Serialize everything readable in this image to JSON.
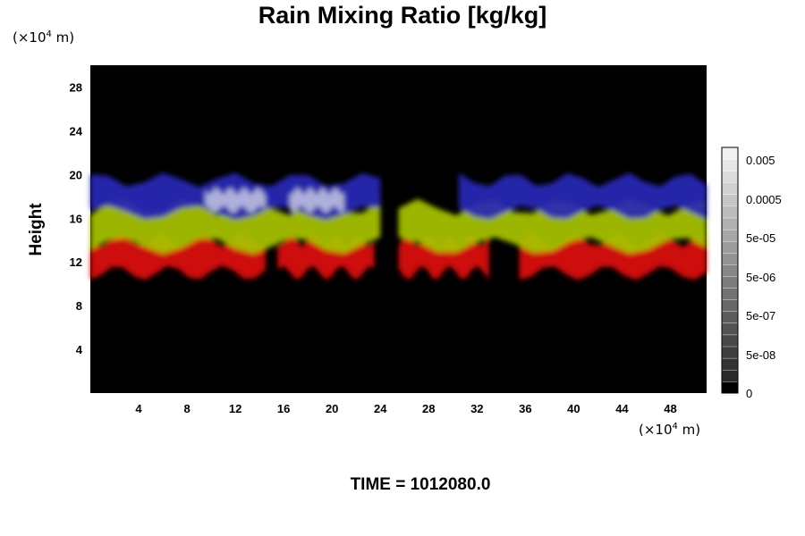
{
  "chart_data": {
    "type": "heatmap",
    "title": "Rain Mixing Ratio [kg/kg]",
    "xlabel": "",
    "ylabel": "Height",
    "x_unit": "(×10⁴ m)",
    "y_unit": "(×10⁴ m)",
    "x_base": "(×10",
    "x_exp": "4",
    "x_tail": " m)",
    "y_base": "(×10",
    "y_exp": "4",
    "y_tail": " m)",
    "xlim": [
      0,
      51
    ],
    "ylim": [
      0,
      30
    ],
    "xticks": [
      4,
      8,
      12,
      16,
      20,
      24,
      28,
      32,
      36,
      40,
      44,
      48
    ],
    "yticks": [
      4,
      8,
      12,
      16,
      20,
      24,
      28
    ],
    "background": "#000000",
    "layers": [
      {
        "color": "#e01010",
        "y_bottom": 11.0,
        "y_top": 14.0,
        "segments": [
          [
            0,
            14.5
          ],
          [
            15.5,
            23.5
          ],
          [
            25.5,
            33
          ],
          [
            35.5,
            51
          ]
        ]
      },
      {
        "color": "#a8c400",
        "y_bottom": 13.5,
        "y_top": 17.0,
        "segments": [
          [
            0,
            24
          ],
          [
            25.5,
            51
          ]
        ]
      },
      {
        "color": "#2828b8",
        "y_bottom": 16.5,
        "y_top": 19.5,
        "segments": [
          [
            0,
            24
          ],
          [
            30.5,
            51
          ]
        ]
      },
      {
        "color": "#b8bce0",
        "y_bottom": 16.8,
        "y_top": 18.5,
        "segments": [
          [
            9.5,
            14.5
          ],
          [
            16.5,
            21
          ]
        ]
      }
    ],
    "colorbar": {
      "labels": [
        "0.005",
        "0.0005",
        "5e-05",
        "5e-06",
        "5e-07",
        "5e-08",
        "0"
      ],
      "steps": 21
    }
  },
  "footer": {
    "time_label": "TIME = 1012080.0"
  }
}
